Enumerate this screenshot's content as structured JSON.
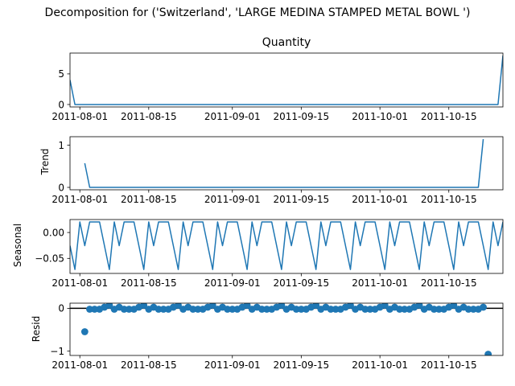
{
  "chart_data": {
    "type": "line",
    "suptitle": "Decomposition for ('Switzerland', 'LARGE MEDINA STAMPED METAL BOWL ')",
    "x_range": [
      "2011-07-30",
      "2011-10-26"
    ],
    "x_ticks": [
      "2011-08-01",
      "2011-08-15",
      "2011-09-01",
      "2011-09-15",
      "2011-10-01",
      "2011-10-15"
    ],
    "colors": {
      "line": "#1f77b4",
      "zero_line": "#000000",
      "axes": "#000000"
    },
    "panels": [
      {
        "name": "observed",
        "title": "Quantity",
        "ylabel": "",
        "plot": "line",
        "ylim": [
          -0.4,
          8.4
        ],
        "yticks": [
          0,
          5
        ],
        "ytick_labels": [
          "0",
          "5"
        ],
        "series": {
          "start_date": "2011-07-30",
          "end_date": "2011-10-26",
          "values": [
            4,
            0,
            0,
            0,
            0,
            0,
            0,
            0,
            0,
            0,
            0,
            0,
            0,
            0,
            0,
            0,
            0,
            0,
            0,
            0,
            0,
            0,
            0,
            0,
            0,
            0,
            0,
            0,
            0,
            0,
            0,
            0,
            0,
            0,
            0,
            0,
            0,
            0,
            0,
            0,
            0,
            0,
            0,
            0,
            0,
            0,
            0,
            0,
            0,
            0,
            0,
            0,
            0,
            0,
            0,
            0,
            0,
            0,
            0,
            0,
            0,
            0,
            0,
            0,
            0,
            0,
            0,
            0,
            0,
            0,
            0,
            0,
            0,
            0,
            0,
            0,
            0,
            0,
            0,
            0,
            0,
            0,
            0,
            0,
            0,
            0,
            0,
            0,
            8
          ]
        }
      },
      {
        "name": "trend",
        "title": "",
        "ylabel": "Trend",
        "plot": "line",
        "ylim": [
          -0.057,
          1.2
        ],
        "yticks": [
          0,
          1
        ],
        "ytick_labels": [
          "0",
          "1"
        ],
        "series": {
          "start_date": "2011-08-02",
          "end_date": "2011-10-23",
          "values": [
            0.571,
            0,
            0,
            0,
            0,
            0,
            0,
            0,
            0,
            0,
            0,
            0,
            0,
            0,
            0,
            0,
            0,
            0,
            0,
            0,
            0,
            0,
            0,
            0,
            0,
            0,
            0,
            0,
            0,
            0,
            0,
            0,
            0,
            0,
            0,
            0,
            0,
            0,
            0,
            0,
            0,
            0,
            0,
            0,
            0,
            0,
            0,
            0,
            0,
            0,
            0,
            0,
            0,
            0,
            0,
            0,
            0,
            0,
            0,
            0,
            0,
            0,
            0,
            0,
            0,
            0,
            0,
            0,
            0,
            0,
            0,
            0,
            0,
            0,
            0,
            0,
            0,
            0,
            0,
            0,
            0,
            1.143
          ]
        }
      },
      {
        "name": "seasonal",
        "title": "",
        "ylabel": "Seasonal",
        "plot": "line",
        "ylim": [
          -0.079,
          0.025
        ],
        "yticks": [
          0.0,
          -0.05
        ],
        "ytick_labels": [
          "0.00",
          "−0.05"
        ],
        "series": {
          "start_date": "2011-07-30",
          "end_date": "2011-10-26",
          "period_pattern": [
            -0.0255,
            0.0204,
            0.0204,
            0.0204,
            -0.0255,
            -0.0714,
            0.0204
          ],
          "pattern_start_index": 4
        }
      },
      {
        "name": "resid",
        "title": "",
        "ylabel": "Resid",
        "plot": "scatter",
        "ylim": [
          -1.1,
          0.12
        ],
        "yticks": [
          0,
          -1
        ],
        "ytick_labels": [
          "0",
          "−1"
        ],
        "zero_line": true,
        "series": {
          "start_date": "2011-08-02",
          "end_date": "2011-10-23",
          "first_value": -0.546,
          "last_value": -1.0714,
          "pattern_start_index": 0,
          "period_pattern": [
            0.0255,
            -0.0204,
            -0.0204,
            -0.0204,
            0.0255,
            0.0714,
            -0.0204
          ]
        }
      }
    ]
  }
}
